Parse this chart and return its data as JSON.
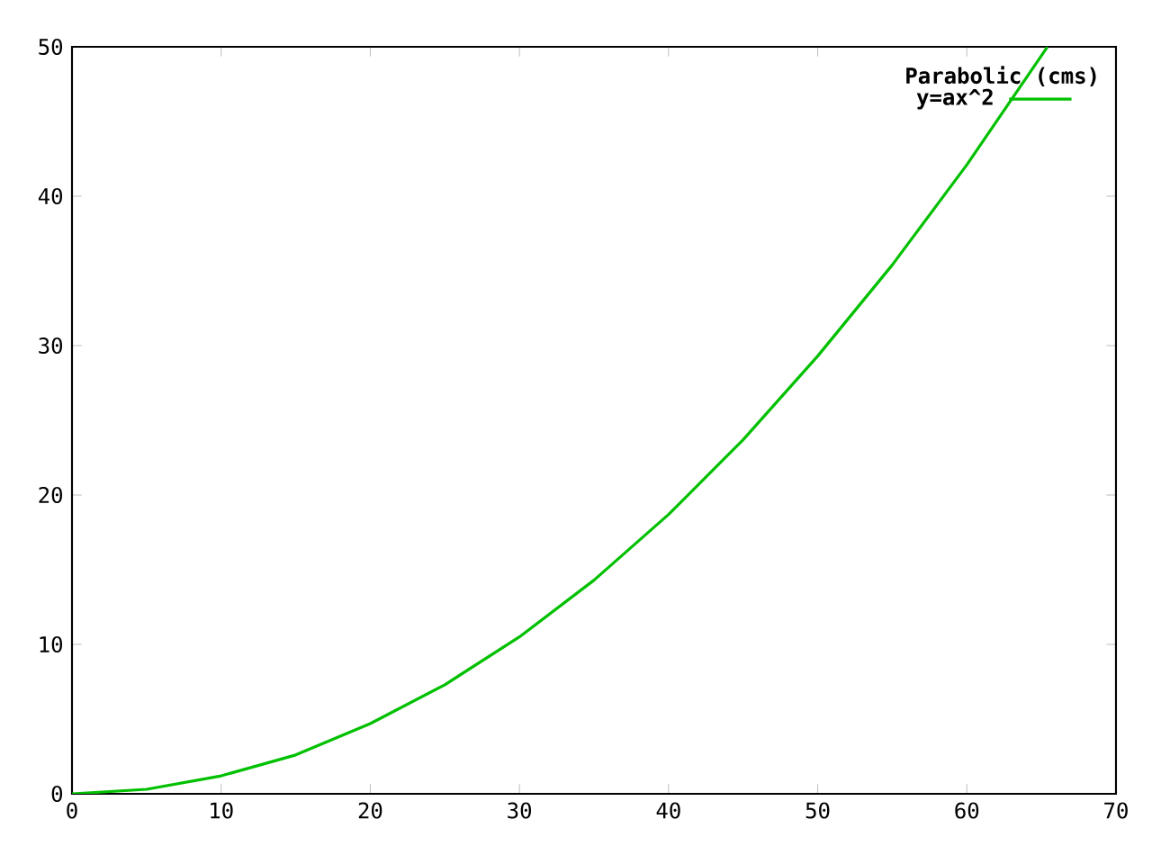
{
  "chart_data": {
    "type": "line",
    "legend_title": "Parabolic (cms)",
    "x": [
      0,
      5,
      10,
      15,
      20,
      25,
      30,
      35,
      40,
      45,
      50,
      55,
      60,
      65,
      65.4
    ],
    "series": [
      {
        "name": "y=ax^2",
        "color": "#00c000",
        "values": [
          0,
          0.3,
          1.2,
          2.6,
          4.7,
          7.3,
          10.5,
          14.3,
          18.7,
          23.7,
          29.3,
          35.4,
          42.1,
          49.4,
          50
        ]
      }
    ],
    "xlim": [
      0,
      70
    ],
    "ylim": [
      0,
      50
    ],
    "xticks": [
      0,
      10,
      20,
      30,
      40,
      50,
      60,
      70
    ],
    "yticks": [
      0,
      10,
      20,
      30,
      40,
      50
    ],
    "grid": false,
    "legend": "top right",
    "marker": "none",
    "line_style": "solid"
  }
}
